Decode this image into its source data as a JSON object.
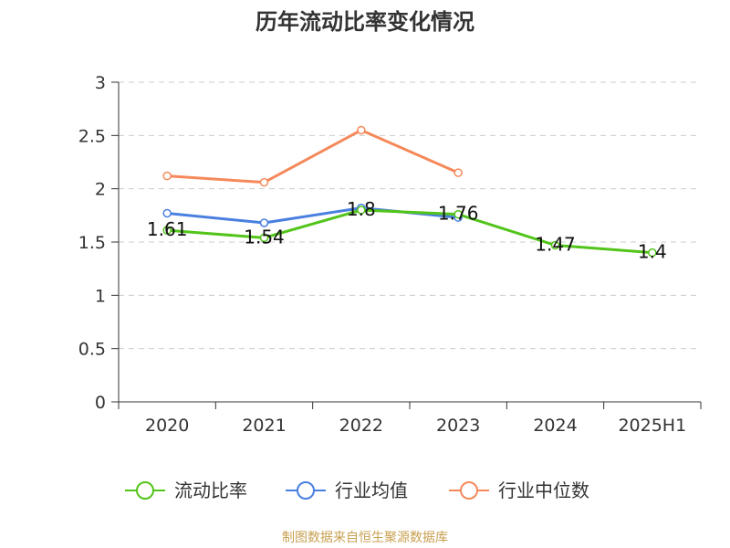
{
  "chart_data": {
    "type": "line",
    "title": "历年流动比率变化情况",
    "source": "制图数据来自恒生聚源数据库",
    "categories": [
      "2020",
      "2021",
      "2022",
      "2023",
      "2024",
      "2025H1"
    ],
    "ylim": [
      0,
      3
    ],
    "yticks": [
      "0",
      "0.5",
      "1",
      "1.5",
      "2",
      "2.5",
      "3"
    ],
    "grid": true,
    "legend_position": "bottom",
    "series": [
      {
        "name": "流动比率",
        "color": "#52c41a",
        "values": [
          1.61,
          1.54,
          1.8,
          1.76,
          1.47,
          1.4
        ],
        "labels": [
          "1.61",
          "1.54",
          "1.8",
          "1.76",
          "1.47",
          "1.4"
        ]
      },
      {
        "name": "行业均值",
        "color": "#4a7fe0",
        "values": [
          1.77,
          1.68,
          1.82,
          1.73,
          null,
          null
        ]
      },
      {
        "name": "行业中位数",
        "color": "#f5895a",
        "values": [
          2.12,
          2.06,
          2.55,
          2.15,
          null,
          null
        ]
      }
    ]
  }
}
